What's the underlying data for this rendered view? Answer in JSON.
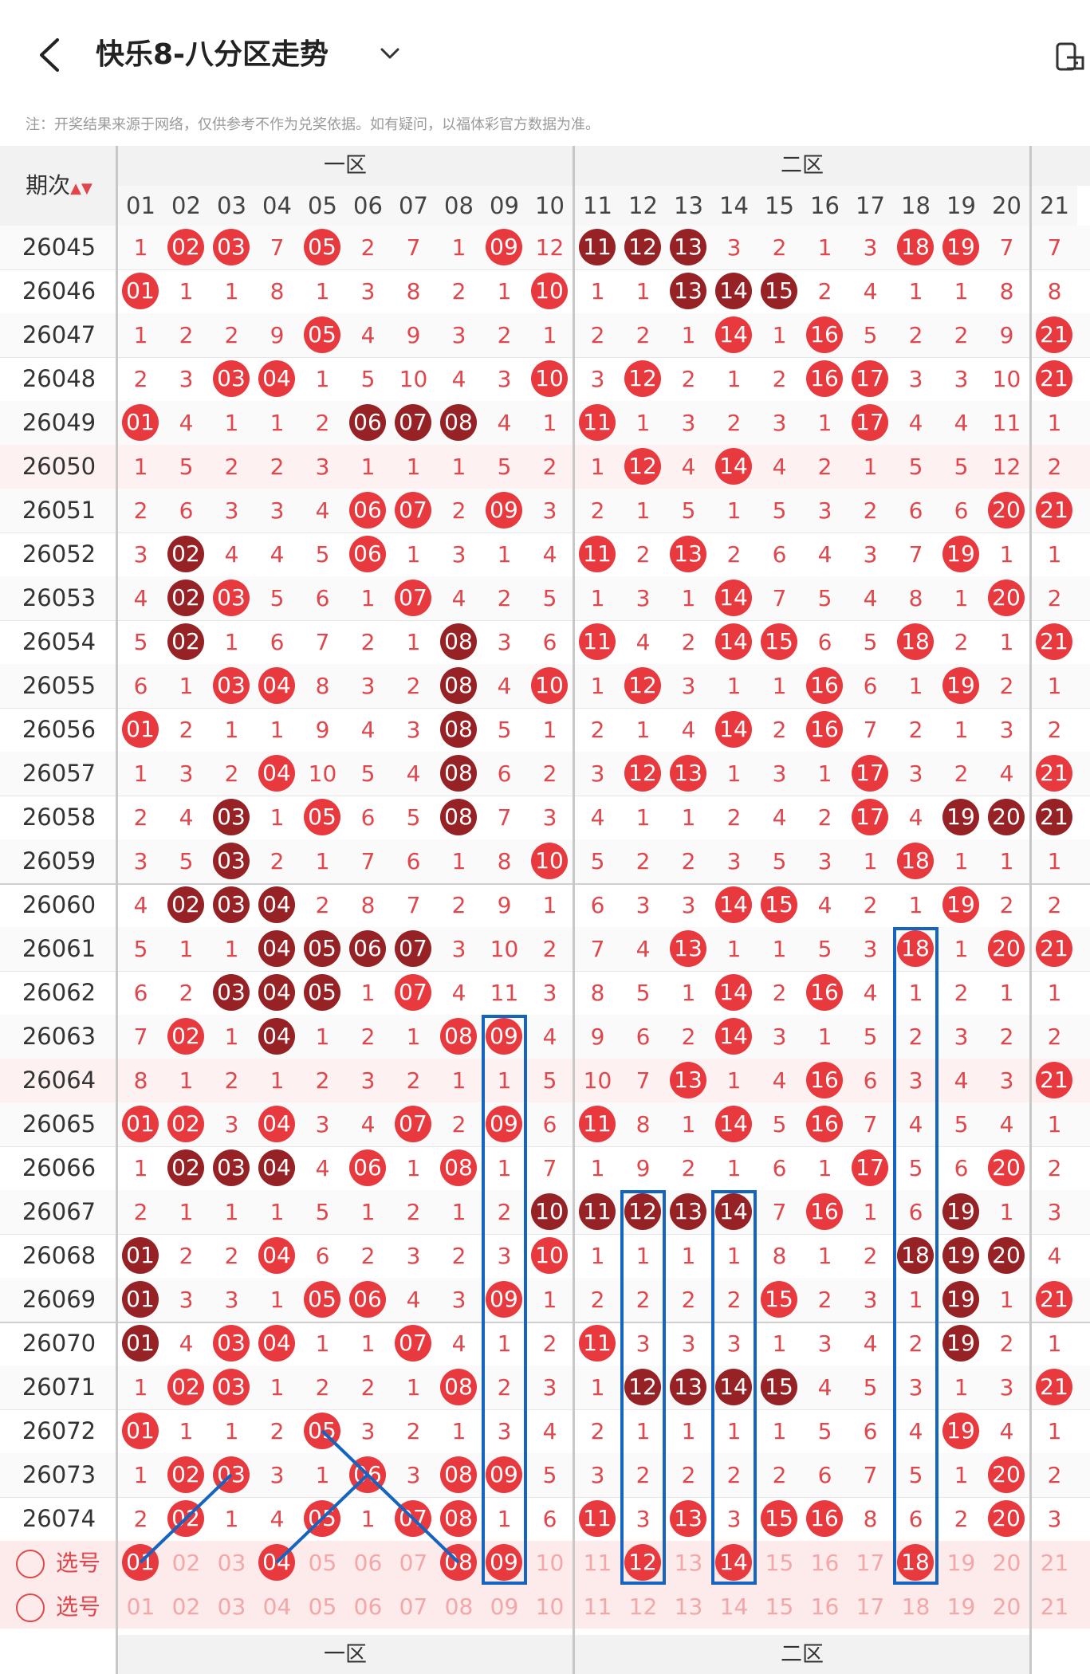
{
  "header": {
    "title": "快乐8-八分区走势"
  },
  "note": "注：开奖结果来源于网络，仅供参考不作为兑奖依据。如有疑问，以福体彩官方数据为准。",
  "table": {
    "period_label": "期次",
    "zones": [
      "一区",
      "二区"
    ],
    "columns": [
      "01",
      "02",
      "03",
      "04",
      "05",
      "06",
      "07",
      "08",
      "09",
      "10",
      "11",
      "12",
      "13",
      "14",
      "15",
      "16",
      "17",
      "18",
      "19",
      "20",
      "21"
    ],
    "rows": [
      {
        "period": "26045",
        "cells": [
          "1",
          "R02",
          "R03",
          "7",
          "R05",
          "2",
          "7",
          "1",
          "R09",
          "12",
          "D11",
          "D12",
          "D13",
          "3",
          "2",
          "1",
          "3",
          "R18",
          "R19",
          "7",
          "7"
        ]
      },
      {
        "period": "26046",
        "cells": [
          "R01",
          "1",
          "1",
          "8",
          "1",
          "3",
          "8",
          "2",
          "1",
          "R10",
          "1",
          "1",
          "D13",
          "D14",
          "D15",
          "2",
          "4",
          "1",
          "1",
          "8",
          "8"
        ]
      },
      {
        "period": "26047",
        "cells": [
          "1",
          "2",
          "2",
          "9",
          "R05",
          "4",
          "9",
          "3",
          "2",
          "1",
          "2",
          "2",
          "1",
          "R14",
          "1",
          "R16",
          "5",
          "2",
          "2",
          "9",
          "R21"
        ]
      },
      {
        "period": "26048",
        "cells": [
          "2",
          "3",
          "R03",
          "R04",
          "1",
          "5",
          "10",
          "4",
          "3",
          "R10",
          "3",
          "R12",
          "2",
          "1",
          "2",
          "R16",
          "R17",
          "3",
          "3",
          "10",
          "R21"
        ]
      },
      {
        "period": "26049",
        "cells": [
          "R01",
          "4",
          "1",
          "1",
          "2",
          "D06",
          "D07",
          "D08",
          "4",
          "1",
          "R11",
          "1",
          "3",
          "2",
          "3",
          "1",
          "R17",
          "4",
          "4",
          "11",
          "1"
        ]
      },
      {
        "period": "26050",
        "cells": [
          "1",
          "5",
          "2",
          "2",
          "3",
          "1",
          "1",
          "1",
          "5",
          "2",
          "1",
          "R12",
          "4",
          "R14",
          "4",
          "2",
          "1",
          "5",
          "5",
          "12",
          "2"
        ]
      },
      {
        "period": "26051",
        "cells": [
          "2",
          "6",
          "3",
          "3",
          "4",
          "R06",
          "R07",
          "2",
          "R09",
          "3",
          "2",
          "1",
          "5",
          "1",
          "5",
          "3",
          "2",
          "6",
          "6",
          "R20",
          "R21"
        ]
      },
      {
        "period": "26052",
        "cells": [
          "3",
          "D02",
          "4",
          "4",
          "5",
          "R06",
          "1",
          "3",
          "1",
          "4",
          "R11",
          "2",
          "R13",
          "2",
          "6",
          "4",
          "3",
          "7",
          "R19",
          "1",
          "1"
        ]
      },
      {
        "period": "26053",
        "cells": [
          "4",
          "D02",
          "R03",
          "5",
          "6",
          "1",
          "R07",
          "4",
          "2",
          "5",
          "1",
          "3",
          "1",
          "R14",
          "7",
          "5",
          "4",
          "8",
          "1",
          "R20",
          "2"
        ]
      },
      {
        "period": "26054",
        "cells": [
          "5",
          "D02",
          "1",
          "6",
          "7",
          "2",
          "1",
          "D08",
          "3",
          "6",
          "R11",
          "4",
          "2",
          "R14",
          "R15",
          "6",
          "5",
          "R18",
          "2",
          "1",
          "R21"
        ]
      },
      {
        "period": "26055",
        "cells": [
          "6",
          "1",
          "R03",
          "R04",
          "8",
          "3",
          "2",
          "D08",
          "4",
          "R10",
          "1",
          "R12",
          "3",
          "1",
          "1",
          "R16",
          "6",
          "1",
          "R19",
          "2",
          "1"
        ]
      },
      {
        "period": "26056",
        "cells": [
          "R01",
          "2",
          "1",
          "1",
          "9",
          "4",
          "3",
          "D08",
          "5",
          "1",
          "2",
          "1",
          "4",
          "R14",
          "2",
          "R16",
          "7",
          "2",
          "1",
          "3",
          "2"
        ]
      },
      {
        "period": "26057",
        "cells": [
          "1",
          "3",
          "2",
          "R04",
          "10",
          "5",
          "4",
          "D08",
          "6",
          "2",
          "3",
          "R12",
          "R13",
          "1",
          "3",
          "1",
          "R17",
          "3",
          "2",
          "4",
          "R21"
        ]
      },
      {
        "period": "26058",
        "cells": [
          "2",
          "4",
          "D03",
          "1",
          "R05",
          "6",
          "5",
          "D08",
          "7",
          "3",
          "4",
          "1",
          "1",
          "2",
          "4",
          "2",
          "R17",
          "4",
          "D19",
          "D20",
          "D21"
        ]
      },
      {
        "period": "26059",
        "cells": [
          "3",
          "5",
          "D03",
          "2",
          "1",
          "7",
          "6",
          "1",
          "8",
          "R10",
          "5",
          "2",
          "2",
          "3",
          "5",
          "3",
          "1",
          "R18",
          "1",
          "1",
          "1"
        ]
      },
      {
        "period": "26060",
        "cells": [
          "4",
          "D02",
          "D03",
          "D04",
          "2",
          "8",
          "7",
          "2",
          "9",
          "1",
          "6",
          "3",
          "3",
          "R14",
          "R15",
          "4",
          "2",
          "1",
          "R19",
          "2",
          "2"
        ]
      },
      {
        "period": "26061",
        "cells": [
          "5",
          "1",
          "1",
          "D04",
          "D05",
          "D06",
          "D07",
          "3",
          "10",
          "2",
          "7",
          "4",
          "R13",
          "1",
          "1",
          "5",
          "3",
          "R18",
          "1",
          "R20",
          "R21"
        ]
      },
      {
        "period": "26062",
        "cells": [
          "6",
          "2",
          "D03",
          "D04",
          "D05",
          "1",
          "R07",
          "4",
          "11",
          "3",
          "8",
          "5",
          "1",
          "R14",
          "2",
          "R16",
          "4",
          "1",
          "2",
          "1",
          "1"
        ]
      },
      {
        "period": "26063",
        "cells": [
          "7",
          "R02",
          "1",
          "D04",
          "1",
          "2",
          "1",
          "R08",
          "R09",
          "4",
          "9",
          "6",
          "2",
          "R14",
          "3",
          "1",
          "5",
          "2",
          "3",
          "2",
          "2"
        ]
      },
      {
        "period": "26064",
        "cells": [
          "8",
          "1",
          "2",
          "1",
          "2",
          "3",
          "2",
          "1",
          "1",
          "5",
          "10",
          "7",
          "R13",
          "1",
          "4",
          "R16",
          "6",
          "3",
          "4",
          "3",
          "R21"
        ]
      },
      {
        "period": "26065",
        "cells": [
          "R01",
          "R02",
          "3",
          "R04",
          "3",
          "4",
          "R07",
          "2",
          "R09",
          "6",
          "R11",
          "8",
          "1",
          "R14",
          "5",
          "R16",
          "7",
          "4",
          "5",
          "4",
          "1"
        ]
      },
      {
        "period": "26066",
        "cells": [
          "1",
          "D02",
          "D03",
          "D04",
          "4",
          "R06",
          "1",
          "R08",
          "1",
          "7",
          "1",
          "9",
          "2",
          "1",
          "6",
          "1",
          "R17",
          "5",
          "6",
          "R20",
          "2"
        ]
      },
      {
        "period": "26067",
        "cells": [
          "2",
          "1",
          "1",
          "1",
          "5",
          "1",
          "2",
          "1",
          "2",
          "D10",
          "D11",
          "D12",
          "D13",
          "D14",
          "7",
          "R16",
          "1",
          "6",
          "D19",
          "1",
          "3"
        ]
      },
      {
        "period": "26068",
        "cells": [
          "D01",
          "2",
          "2",
          "R04",
          "6",
          "2",
          "3",
          "2",
          "3",
          "R10",
          "1",
          "1",
          "1",
          "1",
          "8",
          "1",
          "2",
          "D18",
          "D19",
          "D20",
          "4"
        ]
      },
      {
        "period": "26069",
        "cells": [
          "D01",
          "3",
          "3",
          "1",
          "R05",
          "R06",
          "4",
          "3",
          "R09",
          "1",
          "2",
          "2",
          "2",
          "2",
          "R15",
          "2",
          "3",
          "1",
          "D19",
          "1",
          "R21"
        ]
      },
      {
        "period": "26070",
        "cells": [
          "D01",
          "4",
          "R03",
          "R04",
          "1",
          "1",
          "R07",
          "4",
          "1",
          "2",
          "R11",
          "3",
          "3",
          "3",
          "1",
          "3",
          "4",
          "2",
          "D19",
          "2",
          "1"
        ]
      },
      {
        "period": "26071",
        "cells": [
          "1",
          "R02",
          "R03",
          "1",
          "2",
          "2",
          "1",
          "R08",
          "2",
          "3",
          "1",
          "D12",
          "D13",
          "D14",
          "D15",
          "4",
          "5",
          "3",
          "1",
          "3",
          "R21"
        ]
      },
      {
        "period": "26072",
        "cells": [
          "R01",
          "1",
          "1",
          "2",
          "R05",
          "3",
          "2",
          "1",
          "3",
          "4",
          "2",
          "1",
          "1",
          "1",
          "1",
          "5",
          "6",
          "4",
          "R19",
          "4",
          "1"
        ]
      },
      {
        "period": "26073",
        "cells": [
          "1",
          "R02",
          "R03",
          "3",
          "1",
          "R06",
          "3",
          "R08",
          "R09",
          "5",
          "3",
          "2",
          "2",
          "2",
          "2",
          "6",
          "7",
          "5",
          "1",
          "R20",
          "2"
        ]
      },
      {
        "period": "26074",
        "cells": [
          "2",
          "R02",
          "1",
          "4",
          "R05",
          "1",
          "R07",
          "R08",
          "1",
          "6",
          "R11",
          "3",
          "R13",
          "3",
          "R15",
          "R16",
          "8",
          "6",
          "2",
          "R20",
          "3"
        ]
      }
    ],
    "select_rows": [
      {
        "label": "选号",
        "selected": [
          "01",
          "04",
          "08",
          "09",
          "12",
          "14",
          "18"
        ]
      },
      {
        "label": "选号",
        "selected": []
      }
    ]
  }
}
